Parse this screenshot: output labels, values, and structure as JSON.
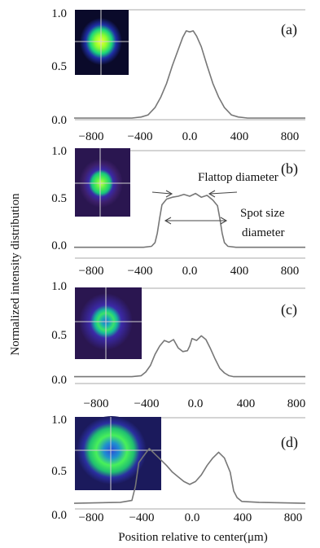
{
  "figure": {
    "ylabel": "Normalized intensity distribution",
    "xlabel": "Position relative to center(μm)"
  },
  "chart_data": [
    {
      "type": "line",
      "panel": "(a)",
      "xlim": [
        -1000,
        1000
      ],
      "ylim": [
        0,
        1
      ],
      "yticks": [
        "1.0",
        "0.5",
        "0.0"
      ],
      "xticks": [
        "−800",
        "−400",
        "0.0",
        "400",
        "800"
      ],
      "x": [
        -1000,
        -500,
        -420,
        -360,
        -300,
        -250,
        -200,
        -150,
        -100,
        -60,
        -30,
        0,
        30,
        60,
        100,
        150,
        200,
        250,
        300,
        360,
        420,
        500,
        1000
      ],
      "y": [
        0.0,
        0.0,
        0.01,
        0.03,
        0.1,
        0.2,
        0.33,
        0.5,
        0.65,
        0.77,
        0.83,
        0.82,
        0.83,
        0.78,
        0.68,
        0.5,
        0.33,
        0.2,
        0.1,
        0.03,
        0.01,
        0.0,
        0.0
      ]
    },
    {
      "type": "line",
      "panel": "(b)",
      "xlim": [
        -1000,
        1000
      ],
      "ylim": [
        0,
        1
      ],
      "yticks": [
        "1.0",
        "0.5",
        "0.0"
      ],
      "xticks": [
        "−800",
        "−400",
        "0.0",
        "400",
        "800"
      ],
      "x": [
        -1000,
        -600,
        -400,
        -330,
        -300,
        -280,
        -260,
        -240,
        -200,
        -150,
        -100,
        -50,
        0,
        50,
        100,
        150,
        200,
        240,
        260,
        280,
        300,
        330,
        400,
        600,
        1000
      ],
      "y": [
        0.02,
        0.02,
        0.02,
        0.03,
        0.07,
        0.17,
        0.33,
        0.47,
        0.53,
        0.55,
        0.56,
        0.58,
        0.56,
        0.59,
        0.55,
        0.57,
        0.52,
        0.46,
        0.33,
        0.17,
        0.07,
        0.03,
        0.02,
        0.02,
        0.02
      ],
      "annotations": {
        "flattop": "Flattop diameter",
        "spot_line1": "Spot size",
        "spot_line2": "diameter"
      }
    },
    {
      "type": "line",
      "panel": "(c)",
      "xlim": [
        -1000,
        1000
      ],
      "ylim": [
        0,
        1
      ],
      "yticks": [
        "1.0",
        "0.5",
        "0.0"
      ],
      "xticks": [
        "−800",
        "−400",
        "0.0",
        "400",
        "800"
      ],
      "x": [
        -1000,
        -500,
        -420,
        -380,
        -340,
        -300,
        -260,
        -220,
        -180,
        -140,
        -100,
        -60,
        -20,
        0,
        20,
        60,
        100,
        140,
        180,
        220,
        260,
        300,
        340,
        380,
        420,
        500,
        1000
      ],
      "y": [
        0.03,
        0.03,
        0.04,
        0.08,
        0.15,
        0.27,
        0.36,
        0.42,
        0.4,
        0.43,
        0.34,
        0.3,
        0.31,
        0.36,
        0.44,
        0.42,
        0.47,
        0.43,
        0.33,
        0.22,
        0.12,
        0.07,
        0.04,
        0.03,
        0.03,
        0.03,
        0.03
      ]
    },
    {
      "type": "line",
      "panel": "(d)",
      "xlim": [
        -1000,
        1000
      ],
      "ylim": [
        0,
        1
      ],
      "yticks": [
        "1.0",
        "0.5",
        "0.0"
      ],
      "xticks": [
        "−800",
        "−400",
        "0.0",
        "400",
        "800"
      ],
      "x": [
        -1000,
        -600,
        -500,
        -470,
        -440,
        -400,
        -350,
        -300,
        -250,
        -200,
        -150,
        -100,
        -50,
        0,
        50,
        100,
        150,
        200,
        250,
        300,
        350,
        380,
        410,
        450,
        600,
        1000
      ],
      "y": [
        0.12,
        0.13,
        0.15,
        0.3,
        0.55,
        0.62,
        0.7,
        0.64,
        0.58,
        0.52,
        0.45,
        0.4,
        0.35,
        0.32,
        0.35,
        0.42,
        0.52,
        0.6,
        0.66,
        0.6,
        0.45,
        0.25,
        0.18,
        0.14,
        0.13,
        0.12
      ]
    }
  ]
}
